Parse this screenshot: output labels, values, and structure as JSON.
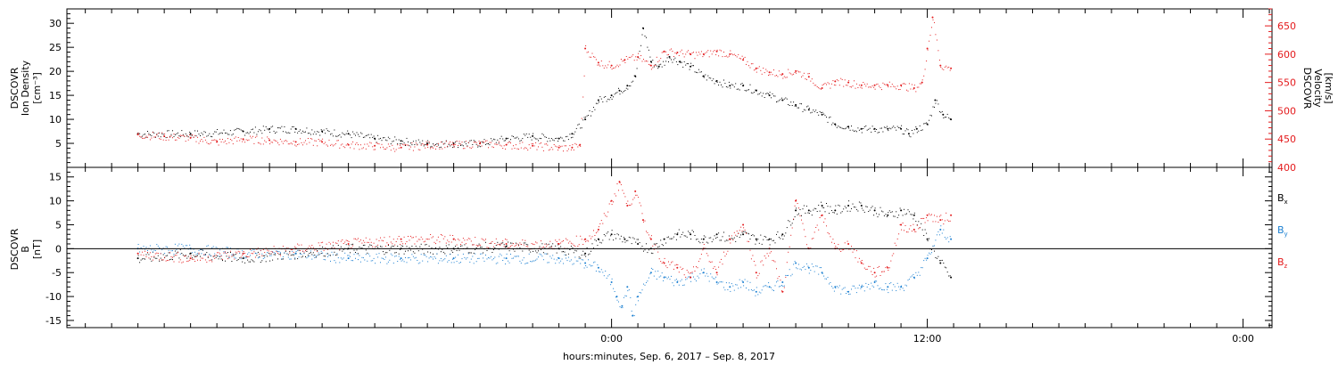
{
  "chart_data": [
    {
      "type": "scatter",
      "panel": "top",
      "ylabel": [
        "DSCOVR",
        "Ion Density",
        "[cm⁻³]"
      ],
      "y2label": [
        "DSCOVR",
        "Velocity",
        "[km/s]"
      ],
      "ylim": [
        0,
        33
      ],
      "yticks": [
        5,
        10,
        15,
        20,
        25,
        30
      ],
      "y2lim": [
        400,
        680
      ],
      "y2ticks": [
        400,
        450,
        500,
        550,
        600,
        650
      ],
      "series": [
        {
          "color": "#000000",
          "axis": "left",
          "x": [
            -18,
            -16,
            -14,
            -13,
            -12,
            -11,
            -10,
            -9,
            -8,
            -7,
            -6,
            -5,
            -4,
            -3,
            -2,
            -1.5,
            -1,
            -0.5,
            0,
            0.3,
            0.6,
            0.9,
            1.2,
            1.5,
            1.8,
            2.2,
            2.6,
            3,
            3.5,
            4,
            4.5,
            5,
            5.5,
            6,
            6.5,
            7,
            7.5,
            8,
            8.5,
            9,
            9.5,
            10,
            10.5,
            11,
            11.3,
            11.6,
            12,
            12.3,
            12.6,
            12.9
          ],
          "y": [
            7,
            7,
            7.5,
            8,
            8,
            7.5,
            7,
            6,
            5.5,
            5,
            5,
            5,
            6,
            6.5,
            6,
            7,
            10,
            14,
            15,
            16,
            17,
            19,
            29,
            22,
            21,
            23,
            22,
            21,
            19,
            18,
            17,
            17,
            16,
            15,
            14,
            13,
            12,
            11,
            9,
            8.5,
            8,
            8,
            8,
            8,
            7,
            8,
            9,
            14,
            11,
            10
          ]
        },
        {
          "color": "#e41a1c",
          "axis": "right",
          "x": [
            -18,
            -17,
            -16,
            -15,
            -14,
            -13,
            -12,
            -11,
            -10,
            -9,
            -8,
            -7,
            -6,
            -5,
            -4,
            -3,
            -2,
            -1.5,
            -1.2,
            -1,
            -0.5,
            0,
            0.5,
            1,
            1.5,
            2,
            2.5,
            3,
            3.5,
            4,
            4.5,
            5,
            5.5,
            6,
            6.5,
            7,
            7.5,
            8,
            8.5,
            9,
            9.5,
            10,
            10.5,
            11,
            11.5,
            11.8,
            12,
            12.2,
            12.5,
            12.9
          ],
          "y": [
            458,
            455,
            452,
            445,
            450,
            448,
            445,
            445,
            440,
            438,
            435,
            440,
            440,
            442,
            440,
            438,
            435,
            435,
            440,
            610,
            585,
            580,
            590,
            595,
            580,
            605,
            603,
            600,
            600,
            605,
            600,
            590,
            575,
            568,
            565,
            570,
            560,
            540,
            552,
            550,
            545,
            545,
            545,
            545,
            540,
            550,
            610,
            665,
            580,
            575
          ]
        }
      ]
    },
    {
      "type": "scatter",
      "panel": "bottom",
      "ylabel": [
        "DSCOVR",
        "B",
        "[nT]"
      ],
      "ylim": [
        -16.5,
        17
      ],
      "yticks": [
        -15,
        -10,
        -5,
        0,
        5,
        10,
        15
      ],
      "series": [
        {
          "name": "Bx",
          "color": "#000000",
          "x": [
            -18,
            -16,
            -14,
            -12,
            -10,
            -8,
            -6,
            -4,
            -2,
            -1,
            -0.5,
            0,
            0.5,
            1,
            1.5,
            2,
            2.5,
            3,
            3.5,
            4,
            4.5,
            5,
            5.5,
            6,
            6.5,
            7,
            7.5,
            8,
            8.5,
            9,
            9.5,
            10,
            10.5,
            11,
            11.5,
            12,
            12.5,
            12.9
          ],
          "y": [
            -2,
            -1,
            -2,
            -1,
            0,
            0,
            0,
            0.5,
            0,
            -1,
            2,
            3,
            2,
            1,
            0,
            2,
            3,
            3,
            2,
            3,
            2,
            3,
            2,
            2,
            3,
            8,
            8,
            9,
            8,
            9,
            9,
            8,
            7,
            8,
            7,
            2,
            -3,
            -6
          ]
        },
        {
          "name": "By",
          "color": "#1a7fd1",
          "x": [
            -18,
            -16,
            -14,
            -12,
            -10,
            -8,
            -6,
            -4,
            -2,
            -1,
            -0.5,
            0,
            0.2,
            0.4,
            0.6,
            0.8,
            1,
            1.5,
            2,
            2.5,
            3,
            3.5,
            4,
            4.5,
            5,
            5.5,
            6,
            6.5,
            7,
            7.5,
            8,
            8.5,
            9,
            9.5,
            10,
            10.5,
            11,
            11.5,
            12,
            12.5,
            12.9
          ],
          "y": [
            0,
            0,
            -1,
            -1,
            -2,
            -2,
            -2,
            -2,
            -2,
            -3,
            -4,
            -7,
            -10,
            -12,
            -8,
            -14,
            -10,
            -5,
            -6,
            -7,
            -6,
            -5,
            -7,
            -8,
            -7,
            -9,
            -8,
            -7,
            -3,
            -4,
            -5,
            -8,
            -9,
            -8,
            -7,
            -8,
            -8,
            -6,
            -2,
            4,
            2
          ]
        },
        {
          "name": "Bz",
          "color": "#e41a1c",
          "x": [
            -18,
            -16,
            -14,
            -12,
            -10,
            -8,
            -6,
            -4,
            -2,
            -1,
            -0.5,
            0,
            0.3,
            0.6,
            0.9,
            1.2,
            1.5,
            2,
            2.5,
            3,
            3.5,
            4,
            4.5,
            5,
            5.5,
            6,
            6.5,
            7,
            7.5,
            8,
            8.5,
            9,
            9.5,
            10,
            10.5,
            11,
            11.5,
            12,
            12.5,
            12.9
          ],
          "y": [
            -1,
            -2,
            -1,
            0,
            1,
            2,
            2,
            1,
            1,
            2,
            4,
            10,
            14,
            9,
            12,
            6,
            2,
            -3,
            -4,
            -6,
            0,
            -5,
            2,
            5,
            -5,
            0,
            -9,
            10,
            0,
            7,
            0,
            1,
            -3,
            -5,
            -4,
            5,
            4,
            7,
            6,
            7
          ]
        }
      ],
      "legend": [
        "B",
        "B",
        "B"
      ],
      "legend_sub": [
        "x",
        "y",
        "z"
      ],
      "legend_placement": "right"
    }
  ],
  "x_axis": {
    "xlim": [
      -20.7,
      25.1
    ],
    "major_ticks": [
      0,
      12,
      24
    ],
    "tick_labels": [
      "0:00",
      "12:00",
      "0:00"
    ],
    "minor_step": 1,
    "title": "hours:minutes, Sep.  6, 2017 – Sep.  8, 2017"
  }
}
